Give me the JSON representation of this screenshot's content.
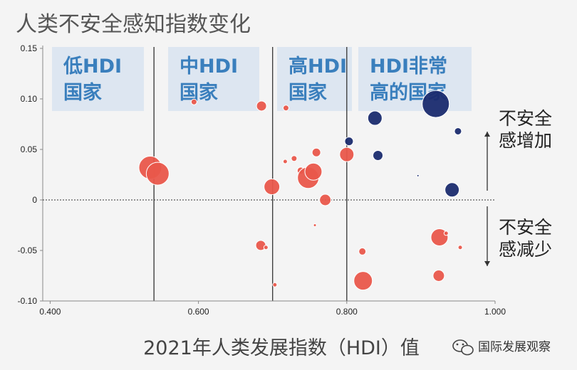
{
  "title": "人类不安全感知指数变化",
  "watermark": "国际发展观察",
  "chart_data": {
    "type": "scatter",
    "title": "人类不安全感知指数变化",
    "xlabel": "2021年人类发展指数（HDI）值",
    "ylabel": "",
    "xlim": [
      0.39,
      1.0
    ],
    "ylim": [
      -0.1,
      0.15
    ],
    "x_ticks": [
      "0.400",
      "0.600",
      "0.800",
      "1.000"
    ],
    "y_ticks": [
      "0.15",
      "0.10",
      "0.05",
      "0",
      "-0.05",
      "-0.10"
    ],
    "x_tick_values": [
      0.4,
      0.6,
      0.8,
      1.0
    ],
    "y_tick_values": [
      0.15,
      0.1,
      0.05,
      0,
      -0.05,
      -0.1
    ],
    "grid": false,
    "reference_line_y": 0,
    "group_boundaries": [
      0.54,
      0.7,
      0.8
    ],
    "groups": [
      {
        "label": "低HDI\n国家",
        "x_min": 0.39,
        "x_max": 0.54
      },
      {
        "label": "中HDI\n国家",
        "x_min": 0.54,
        "x_max": 0.7
      },
      {
        "label": "高HDI\n国家",
        "x_min": 0.7,
        "x_max": 0.8
      },
      {
        "label": "HDI非常\n高的国家",
        "x_min": 0.8,
        "x_max": 1.0
      }
    ],
    "annotations": [
      {
        "text": "不安全\n感增加",
        "arrow": "up"
      },
      {
        "text": "不安全\n感减少",
        "arrow": "down"
      }
    ],
    "series": [
      {
        "color": "#e9574b",
        "points": [
          {
            "x": 0.535,
            "y": 0.032,
            "size": 16
          },
          {
            "x": 0.545,
            "y": 0.026,
            "size": 16
          },
          {
            "x": 0.594,
            "y": 0.097,
            "size": 4
          },
          {
            "x": 0.685,
            "y": 0.093,
            "size": 7
          },
          {
            "x": 0.684,
            "y": -0.045,
            "size": 7
          },
          {
            "x": 0.691,
            "y": -0.047,
            "size": 3
          },
          {
            "x": 0.699,
            "y": 0.013,
            "size": 11
          },
          {
            "x": 0.703,
            "y": -0.084,
            "size": 3
          },
          {
            "x": 0.718,
            "y": 0.091,
            "size": 4
          },
          {
            "x": 0.717,
            "y": 0.038,
            "size": 3
          },
          {
            "x": 0.729,
            "y": 0.041,
            "size": 4
          },
          {
            "x": 0.738,
            "y": 0.029,
            "size": 5
          },
          {
            "x": 0.748,
            "y": 0.022,
            "size": 15
          },
          {
            "x": 0.755,
            "y": 0.028,
            "size": 12
          },
          {
            "x": 0.759,
            "y": 0.047,
            "size": 6
          },
          {
            "x": 0.757,
            "y": -0.025,
            "size": 2
          },
          {
            "x": 0.771,
            "y": 0.0,
            "size": 8
          },
          {
            "x": 0.8,
            "y": 0.045,
            "size": 10
          },
          {
            "x": 0.821,
            "y": -0.051,
            "size": 5
          },
          {
            "x": 0.822,
            "y": -0.08,
            "size": 13
          },
          {
            "x": 0.925,
            "y": -0.037,
            "size": 12
          },
          {
            "x": 0.934,
            "y": -0.033,
            "size": 3
          },
          {
            "x": 0.924,
            "y": -0.075,
            "size": 8
          },
          {
            "x": 0.953,
            "y": -0.047,
            "size": 3
          }
        ]
      },
      {
        "color": "#1a2b6e",
        "points": [
          {
            "x": 0.803,
            "y": 0.058,
            "size": 6
          },
          {
            "x": 0.838,
            "y": 0.081,
            "size": 10
          },
          {
            "x": 0.842,
            "y": 0.044,
            "size": 7
          },
          {
            "x": 0.896,
            "y": 0.024,
            "size": 1.5
          },
          {
            "x": 0.92,
            "y": 0.095,
            "size": 19
          },
          {
            "x": 0.95,
            "y": 0.068,
            "size": 5
          },
          {
            "x": 0.942,
            "y": 0.01,
            "size": 10
          }
        ]
      }
    ]
  }
}
